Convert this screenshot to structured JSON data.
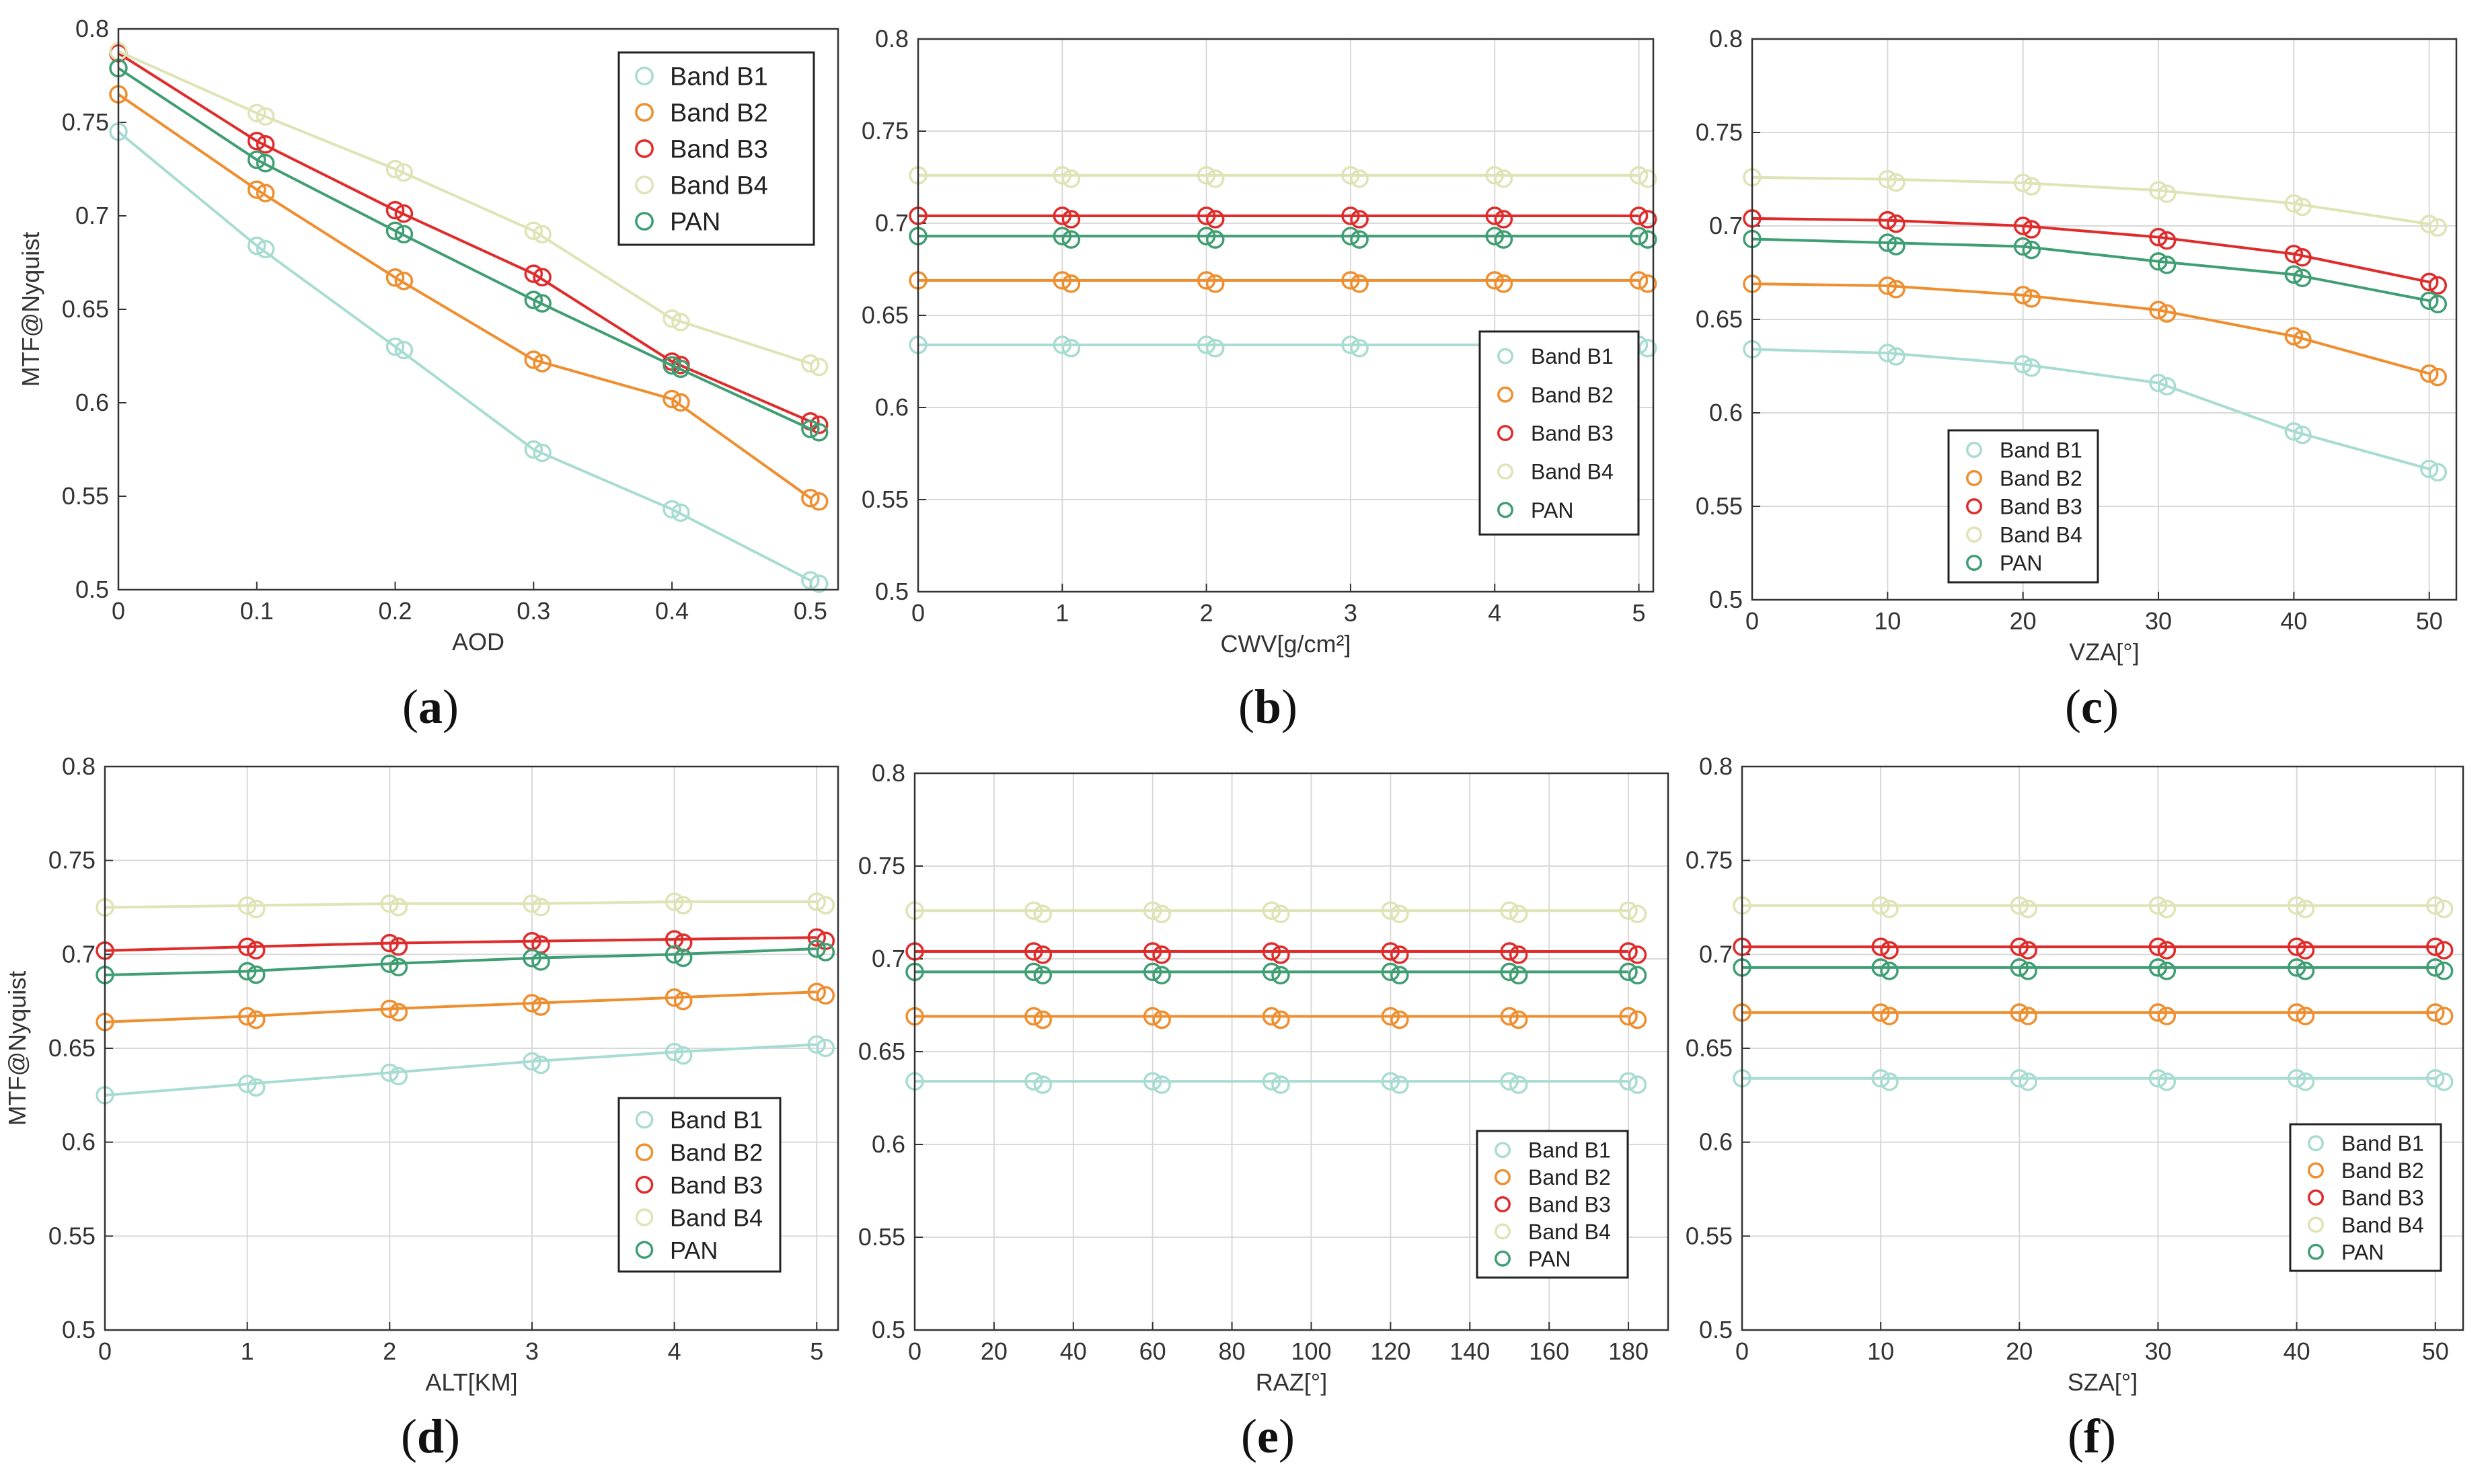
{
  "colors": {
    "Band B1": "#a8dcd3",
    "Band B2": "#ef8e2e",
    "Band B3": "#e02b2b",
    "Band B4": "#dfe3b5",
    "PAN": "#3f9e73"
  },
  "chart_data": [
    {
      "type": "line",
      "panel": "a",
      "xlabel": "AOD",
      "ylabel": "MTF@Nyquist",
      "xlim": [
        0,
        0.52
      ],
      "ylim": [
        0.5,
        0.8
      ],
      "xticks": [
        0,
        0.1,
        0.2,
        0.3,
        0.4,
        0.5
      ],
      "xtick_labels": [
        "0",
        "0.1",
        "0.2",
        "0.3",
        "0.4",
        "0.5"
      ],
      "yticks": [
        0.5,
        0.55,
        0.6,
        0.65,
        0.7,
        0.75,
        0.8
      ],
      "ytick_labels": [
        "0.5",
        "0.55",
        "0.6",
        "0.65",
        "0.7",
        "0.75",
        "0.8"
      ],
      "grid": false,
      "legend_position": "top-right",
      "x": [
        0,
        0.1,
        0.2,
        0.3,
        0.4,
        0.5
      ],
      "series": [
        {
          "name": "Band B1",
          "values": [
            0.745,
            0.684,
            0.63,
            0.575,
            0.543,
            0.505
          ]
        },
        {
          "name": "Band B2",
          "values": [
            0.765,
            0.714,
            0.667,
            0.623,
            0.602,
            0.549
          ]
        },
        {
          "name": "Band B3",
          "values": [
            0.787,
            0.74,
            0.703,
            0.669,
            0.622,
            0.59
          ]
        },
        {
          "name": "Band B4",
          "values": [
            0.788,
            0.755,
            0.725,
            0.692,
            0.645,
            0.621
          ]
        },
        {
          "name": "PAN",
          "values": [
            0.779,
            0.73,
            0.692,
            0.655,
            0.62,
            0.586
          ]
        }
      ]
    },
    {
      "type": "line",
      "panel": "b",
      "xlabel": "CWV[g/cm²]",
      "ylabel": "",
      "xlim": [
        0,
        5.1
      ],
      "ylim": [
        0.5,
        0.8
      ],
      "xticks": [
        0,
        1,
        2,
        3,
        4,
        5
      ],
      "xtick_labels": [
        "0",
        "1",
        "2",
        "3",
        "4",
        "5"
      ],
      "yticks": [
        0.5,
        0.55,
        0.6,
        0.65,
        0.7,
        0.75,
        0.8
      ],
      "ytick_labels": [
        "0.5",
        "0.55",
        "0.6",
        "0.65",
        "0.7",
        "0.75",
        "0.8"
      ],
      "grid": true,
      "legend_position": "bottom-right",
      "x": [
        0,
        1,
        2,
        3,
        4,
        5
      ],
      "series": [
        {
          "name": "Band B1",
          "values": [
            0.634,
            0.634,
            0.634,
            0.634,
            0.634,
            0.634
          ]
        },
        {
          "name": "Band B2",
          "values": [
            0.669,
            0.669,
            0.669,
            0.669,
            0.669,
            0.669
          ]
        },
        {
          "name": "Band B3",
          "values": [
            0.704,
            0.704,
            0.704,
            0.704,
            0.704,
            0.704
          ]
        },
        {
          "name": "Band B4",
          "values": [
            0.726,
            0.726,
            0.726,
            0.726,
            0.726,
            0.726
          ]
        },
        {
          "name": "PAN",
          "values": [
            0.693,
            0.693,
            0.693,
            0.693,
            0.693,
            0.693
          ]
        }
      ]
    },
    {
      "type": "line",
      "panel": "c",
      "xlabel": "VZA[°]",
      "ylabel": "",
      "xlim": [
        0,
        52
      ],
      "ylim": [
        0.5,
        0.8
      ],
      "xticks": [
        0,
        10,
        20,
        30,
        40,
        50
      ],
      "xtick_labels": [
        "0",
        "10",
        "20",
        "30",
        "40",
        "50"
      ],
      "yticks": [
        0.5,
        0.55,
        0.6,
        0.65,
        0.7,
        0.75,
        0.8
      ],
      "ytick_labels": [
        "0.5",
        "0.55",
        "0.6",
        "0.65",
        "0.7",
        "0.75",
        "0.8"
      ],
      "grid": true,
      "legend_position": "bottom-center",
      "x": [
        0,
        10,
        20,
        30,
        40,
        50
      ],
      "series": [
        {
          "name": "Band B1",
          "values": [
            0.634,
            0.632,
            0.626,
            0.616,
            0.59,
            0.57
          ]
        },
        {
          "name": "Band B2",
          "values": [
            0.669,
            0.668,
            0.663,
            0.655,
            0.641,
            0.621
          ]
        },
        {
          "name": "Band B3",
          "values": [
            0.704,
            0.703,
            0.7,
            0.694,
            0.685,
            0.67
          ]
        },
        {
          "name": "Band B4",
          "values": [
            0.726,
            0.725,
            0.723,
            0.719,
            0.712,
            0.701
          ]
        },
        {
          "name": "PAN",
          "values": [
            0.693,
            0.691,
            0.689,
            0.681,
            0.674,
            0.66
          ]
        }
      ]
    },
    {
      "type": "line",
      "panel": "d",
      "xlabel": "ALT[KM]",
      "ylabel": "MTF@Nyquist",
      "xlim": [
        0,
        5.15
      ],
      "ylim": [
        0.5,
        0.8
      ],
      "xticks": [
        0,
        1,
        2,
        3,
        4,
        5
      ],
      "xtick_labels": [
        "0",
        "1",
        "2",
        "3",
        "4",
        "5"
      ],
      "yticks": [
        0.5,
        0.55,
        0.6,
        0.65,
        0.7,
        0.75,
        0.8
      ],
      "ytick_labels": [
        "0.5",
        "0.55",
        "0.6",
        "0.65",
        "0.7",
        "0.75",
        "0.8"
      ],
      "grid": true,
      "legend_position": "bottom-right",
      "x": [
        0,
        1,
        2,
        3,
        4,
        5
      ],
      "series": [
        {
          "name": "Band B1",
          "values": [
            0.625,
            0.631,
            0.637,
            0.643,
            0.648,
            0.652
          ]
        },
        {
          "name": "Band B2",
          "values": [
            0.664,
            0.667,
            0.671,
            0.674,
            0.677,
            0.68
          ]
        },
        {
          "name": "Band B3",
          "values": [
            0.702,
            0.704,
            0.706,
            0.707,
            0.708,
            0.709
          ]
        },
        {
          "name": "Band B4",
          "values": [
            0.725,
            0.726,
            0.727,
            0.727,
            0.728,
            0.728
          ]
        },
        {
          "name": "PAN",
          "values": [
            0.689,
            0.691,
            0.695,
            0.698,
            0.7,
            0.703
          ]
        }
      ]
    },
    {
      "type": "line",
      "panel": "e",
      "xlabel": "RAZ[°]",
      "ylabel": "",
      "xlim": [
        0,
        190
      ],
      "ylim": [
        0.5,
        0.8
      ],
      "xticks": [
        0,
        20,
        40,
        60,
        80,
        100,
        120,
        140,
        160,
        180
      ],
      "xtick_labels": [
        "0",
        "20",
        "40",
        "60",
        "80",
        "100",
        "120",
        "140",
        "160",
        "180"
      ],
      "yticks": [
        0.5,
        0.55,
        0.6,
        0.65,
        0.7,
        0.75,
        0.8
      ],
      "ytick_labels": [
        "0.5",
        "0.55",
        "0.6",
        "0.65",
        "0.7",
        "0.75",
        "0.8"
      ],
      "grid": true,
      "legend_position": "bottom-right",
      "x": [
        0,
        30,
        60,
        90,
        120,
        150,
        180
      ],
      "series": [
        {
          "name": "Band B1",
          "values": [
            0.634,
            0.634,
            0.634,
            0.634,
            0.634,
            0.634,
            0.634
          ]
        },
        {
          "name": "Band B2",
          "values": [
            0.669,
            0.669,
            0.669,
            0.669,
            0.669,
            0.669,
            0.669
          ]
        },
        {
          "name": "Band B3",
          "values": [
            0.704,
            0.704,
            0.704,
            0.704,
            0.704,
            0.704,
            0.704
          ]
        },
        {
          "name": "Band B4",
          "values": [
            0.726,
            0.726,
            0.726,
            0.726,
            0.726,
            0.726,
            0.726
          ]
        },
        {
          "name": "PAN",
          "values": [
            0.693,
            0.693,
            0.693,
            0.693,
            0.693,
            0.693,
            0.693
          ]
        }
      ]
    },
    {
      "type": "line",
      "panel": "f",
      "xlabel": "SZA[°]",
      "ylabel": "",
      "xlim": [
        0,
        52
      ],
      "ylim": [
        0.5,
        0.8
      ],
      "xticks": [
        0,
        10,
        20,
        30,
        40,
        50
      ],
      "xtick_labels": [
        "0",
        "10",
        "20",
        "30",
        "40",
        "50"
      ],
      "yticks": [
        0.5,
        0.55,
        0.6,
        0.65,
        0.7,
        0.75,
        0.8
      ],
      "ytick_labels": [
        "0.5",
        "0.55",
        "0.6",
        "0.65",
        "0.7",
        "0.75",
        "0.8"
      ],
      "grid": true,
      "legend_position": "bottom-right",
      "x": [
        0,
        10,
        20,
        30,
        40,
        50
      ],
      "series": [
        {
          "name": "Band B1",
          "values": [
            0.634,
            0.634,
            0.634,
            0.634,
            0.634,
            0.634
          ]
        },
        {
          "name": "Band B2",
          "values": [
            0.669,
            0.669,
            0.669,
            0.669,
            0.669,
            0.669
          ]
        },
        {
          "name": "Band B3",
          "values": [
            0.704,
            0.704,
            0.704,
            0.704,
            0.704,
            0.704
          ]
        },
        {
          "name": "Band B4",
          "values": [
            0.726,
            0.726,
            0.726,
            0.726,
            0.726,
            0.726
          ]
        },
        {
          "name": "PAN",
          "values": [
            0.693,
            0.693,
            0.693,
            0.693,
            0.693,
            0.693
          ]
        }
      ]
    }
  ],
  "panel_labels": [
    "(a)",
    "(b)",
    "(c)",
    "(d)",
    "(e)",
    "(f)"
  ]
}
